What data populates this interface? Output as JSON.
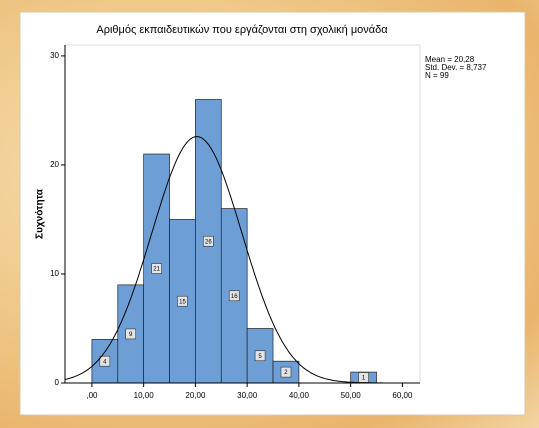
{
  "chart_data": {
    "type": "histogram",
    "title": "Αριθμός εκπαιδευτικών που εργάζονται στη σχολική μονάδα",
    "y_label": "Συχνότητα",
    "bins": [
      0,
      5,
      10,
      15,
      20,
      25,
      30,
      35,
      40,
      45,
      50,
      55
    ],
    "values": [
      4,
      9,
      21,
      15,
      26,
      16,
      5,
      2,
      0,
      0,
      1
    ],
    "color": "#6d9fd6",
    "xlim": [
      -5.2,
      63.4
    ],
    "ylim": [
      0,
      31
    ],
    "xticks": [
      {
        "value": 0,
        "label": ",00"
      },
      {
        "value": 10,
        "label": "10,00"
      },
      {
        "value": 20,
        "label": "20,00"
      },
      {
        "value": 30,
        "label": "30,00"
      },
      {
        "value": 40,
        "label": "40,00"
      },
      {
        "value": 50,
        "label": "50,00"
      },
      {
        "value": 60,
        "label": "60,00"
      }
    ],
    "yticks": [
      0,
      10,
      20,
      30
    ],
    "normal": {
      "mean": 20.28,
      "std": 8.737,
      "n": 99,
      "labels": [
        "Mean = 20,28",
        "Std. Dev. = 8,737",
        "N = 99"
      ]
    }
  }
}
